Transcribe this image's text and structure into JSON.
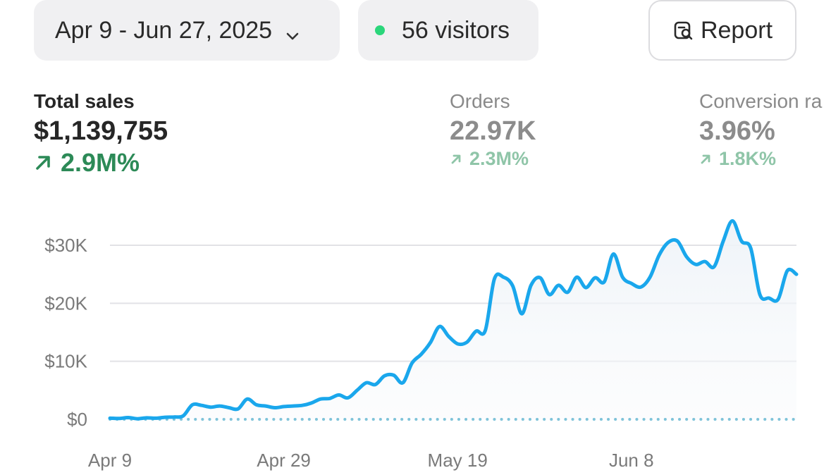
{
  "toolbar": {
    "date_range": "Apr 9 - Jun 27, 2025",
    "visitors": "56 visitors",
    "report_label": "Report",
    "live_color": "#2bd67b"
  },
  "metrics": {
    "total_sales": {
      "label": "Total sales",
      "value": "$1,139,755",
      "change": "2.9M%"
    },
    "orders": {
      "label": "Orders",
      "value": "22.97K",
      "change": "2.3M%"
    },
    "conversion": {
      "label": "Conversion ra",
      "value": "3.96%",
      "change": "1.8K%"
    }
  },
  "chart_data": {
    "type": "area",
    "y_ticks": [
      {
        "label": "$30K",
        "value": 30000
      },
      {
        "label": "$20K",
        "value": 20000
      },
      {
        "label": "$10K",
        "value": 10000
      },
      {
        "label": "$0",
        "value": 0
      }
    ],
    "x_ticks": [
      {
        "label": "Apr 9",
        "day": 0
      },
      {
        "label": "Apr 29",
        "day": 20
      },
      {
        "label": "May 19",
        "day": 40
      },
      {
        "label": "Jun 8",
        "day": 60
      }
    ],
    "ylim": [
      0,
      30000
    ],
    "xlim_days": [
      0,
      79
    ],
    "line_color": "#1aa7ec",
    "baseline_color": "#7fc3d9",
    "series": [
      {
        "values": [
          200,
          150,
          300,
          100,
          250,
          200,
          350,
          400,
          600,
          2500,
          2400,
          2100,
          2300,
          2000,
          1800,
          3500,
          2500,
          2300,
          2000,
          2200,
          2300,
          2400,
          2800,
          3500,
          3600,
          4200,
          3700,
          5000,
          6300,
          6000,
          7500,
          7600,
          6300,
          9700,
          11200,
          13200,
          16000,
          14300,
          13000,
          13300,
          15200,
          15300,
          24200,
          24500,
          23000,
          18200,
          23100,
          24400,
          21500,
          23100,
          21900,
          24500,
          22700,
          24400,
          23700,
          28500,
          24500,
          23400,
          22800,
          24500,
          28300,
          30500,
          30700,
          28000,
          26700,
          27200,
          26300,
          30700,
          34200,
          30700,
          29500,
          21500,
          20900,
          20700,
          25600,
          25000
        ]
      }
    ]
  }
}
